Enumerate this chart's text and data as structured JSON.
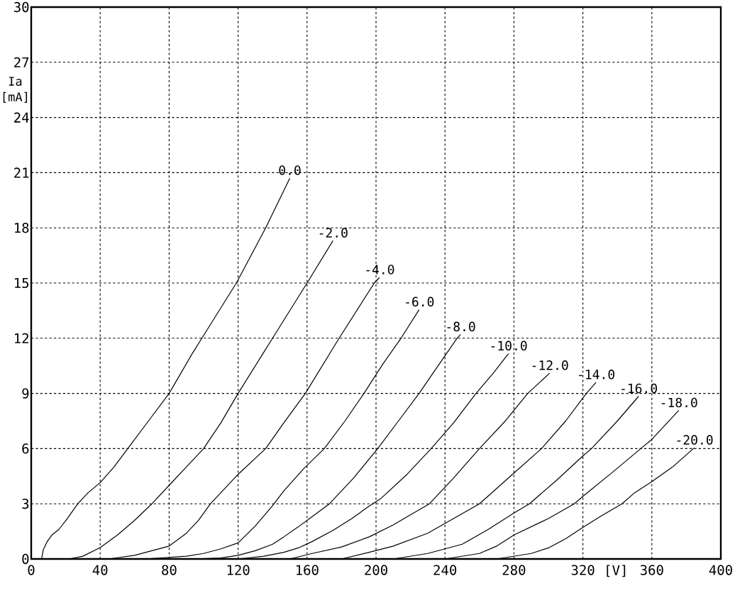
{
  "chart_data": {
    "type": "line",
    "xlabel": "[V]",
    "ylabel": "Ia [mA]",
    "xlim": [
      0,
      400
    ],
    "ylim": [
      0,
      30
    ],
    "xticks": [
      0,
      40,
      80,
      120,
      160,
      200,
      240,
      280,
      320,
      360,
      400
    ],
    "yticks": [
      0,
      3,
      6,
      9,
      12,
      15,
      18,
      21,
      24,
      27,
      30
    ],
    "grid": true,
    "line_style": "solid",
    "series": [
      {
        "name": "0.0",
        "color": "#000000",
        "x": [
          6,
          7,
          9.3,
          12,
          16,
          21,
          27,
          33,
          40,
          48,
          56,
          68,
          80,
          93,
          99,
          119,
          136,
          150
        ],
        "values": [
          0,
          0.5,
          0.95,
          1.3,
          1.6,
          2.2,
          3.0,
          3.6,
          4.15,
          5.0,
          6.0,
          7.5,
          9.0,
          11.1,
          12.0,
          15.0,
          18.0,
          20.7
        ]
      },
      {
        "name": "-2.0",
        "color": "#000000",
        "x": [
          22,
          30,
          40,
          50,
          60,
          70,
          80,
          90,
          100,
          110,
          120,
          134,
          140,
          160,
          175
        ],
        "values": [
          0,
          0.15,
          0.62,
          1.3,
          2.1,
          3.0,
          4.0,
          5.0,
          6.0,
          7.4,
          9.0,
          11.1,
          12.0,
          15.0,
          17.3
        ]
      },
      {
        "name": "-4.0",
        "color": "#000000",
        "x": [
          45,
          60,
          70,
          80,
          90,
          97,
          104,
          120,
          136,
          146.5,
          159,
          178.6,
          199,
          202
        ],
        "values": [
          0,
          0.2,
          0.45,
          0.7,
          1.4,
          2.1,
          3.0,
          4.6,
          6.0,
          7.4,
          9.0,
          12.0,
          15.0,
          15.3
        ]
      },
      {
        "name": "-6.0",
        "color": "#000000",
        "x": [
          66,
          90,
          100,
          110,
          120,
          130,
          140,
          146.5,
          158,
          170,
          182,
          193,
          204,
          214.5,
          225
        ],
        "values": [
          0,
          0.15,
          0.3,
          0.55,
          0.87,
          1.8,
          2.9,
          3.7,
          4.9,
          6.0,
          7.5,
          9.0,
          10.6,
          12.0,
          13.55
        ]
      },
      {
        "name": "-8.0",
        "color": "#000000",
        "x": [
          95,
          110,
          120,
          130,
          140,
          146.5,
          155,
          163,
          173,
          187,
          201,
          213,
          225,
          236,
          247,
          249
        ],
        "values": [
          0,
          0.05,
          0.2,
          0.45,
          0.8,
          1.2,
          1.75,
          2.3,
          3.0,
          4.4,
          6.0,
          7.5,
          9.0,
          10.5,
          12.0,
          12.2
        ]
      },
      {
        "name": "-10.0",
        "color": "#000000",
        "x": [
          120,
          135,
          146.5,
          155,
          163,
          175,
          186,
          196,
          203,
          218,
          232,
          245,
          258,
          268,
          276.8
        ],
        "values": [
          0,
          0.15,
          0.36,
          0.6,
          0.95,
          1.55,
          2.2,
          2.87,
          3.3,
          4.6,
          6.0,
          7.4,
          9.0,
          10.1,
          11.16
        ]
      },
      {
        "name": "-12.0",
        "color": "#000000",
        "x": [
          150,
          163,
          180,
          196,
          210,
          220,
          231,
          245,
          260,
          275,
          288,
          300.7
        ],
        "values": [
          0,
          0.3,
          0.65,
          1.2,
          1.85,
          2.4,
          3.0,
          4.4,
          6.0,
          7.5,
          9.0,
          10.1
        ]
      },
      {
        "name": "-14.0",
        "color": "#000000",
        "x": [
          180,
          196,
          210,
          230,
          245,
          260,
          278,
          296,
          310,
          322,
          327.6
        ],
        "values": [
          0,
          0.36,
          0.7,
          1.4,
          2.2,
          3.0,
          4.5,
          6.0,
          7.5,
          9.0,
          9.6
        ]
      },
      {
        "name": "-16.0",
        "color": "#000000",
        "x": [
          210,
          230,
          250,
          265,
          280,
          289,
          305,
          320,
          325,
          340,
          352.3
        ],
        "values": [
          0,
          0.3,
          0.8,
          1.6,
          2.5,
          3.0,
          4.3,
          5.6,
          6.0,
          7.5,
          8.84
        ]
      },
      {
        "name": "-18.0",
        "color": "#000000",
        "x": [
          240,
          260,
          270,
          280,
          300,
          315,
          320,
          337,
          353.6,
          360,
          375.6
        ],
        "values": [
          0,
          0.3,
          0.7,
          1.3,
          2.2,
          3.0,
          3.4,
          4.7,
          6.0,
          6.5,
          8.07
        ]
      },
      {
        "name": "-20.0",
        "color": "#000000",
        "x": [
          270,
          290,
          300,
          310,
          320,
          330,
          342.7,
          350,
          360,
          372,
          384.6
        ],
        "values": [
          0,
          0.3,
          0.6,
          1.1,
          1.72,
          2.3,
          3.0,
          3.6,
          4.2,
          5.0,
          6.04
        ]
      }
    ]
  }
}
